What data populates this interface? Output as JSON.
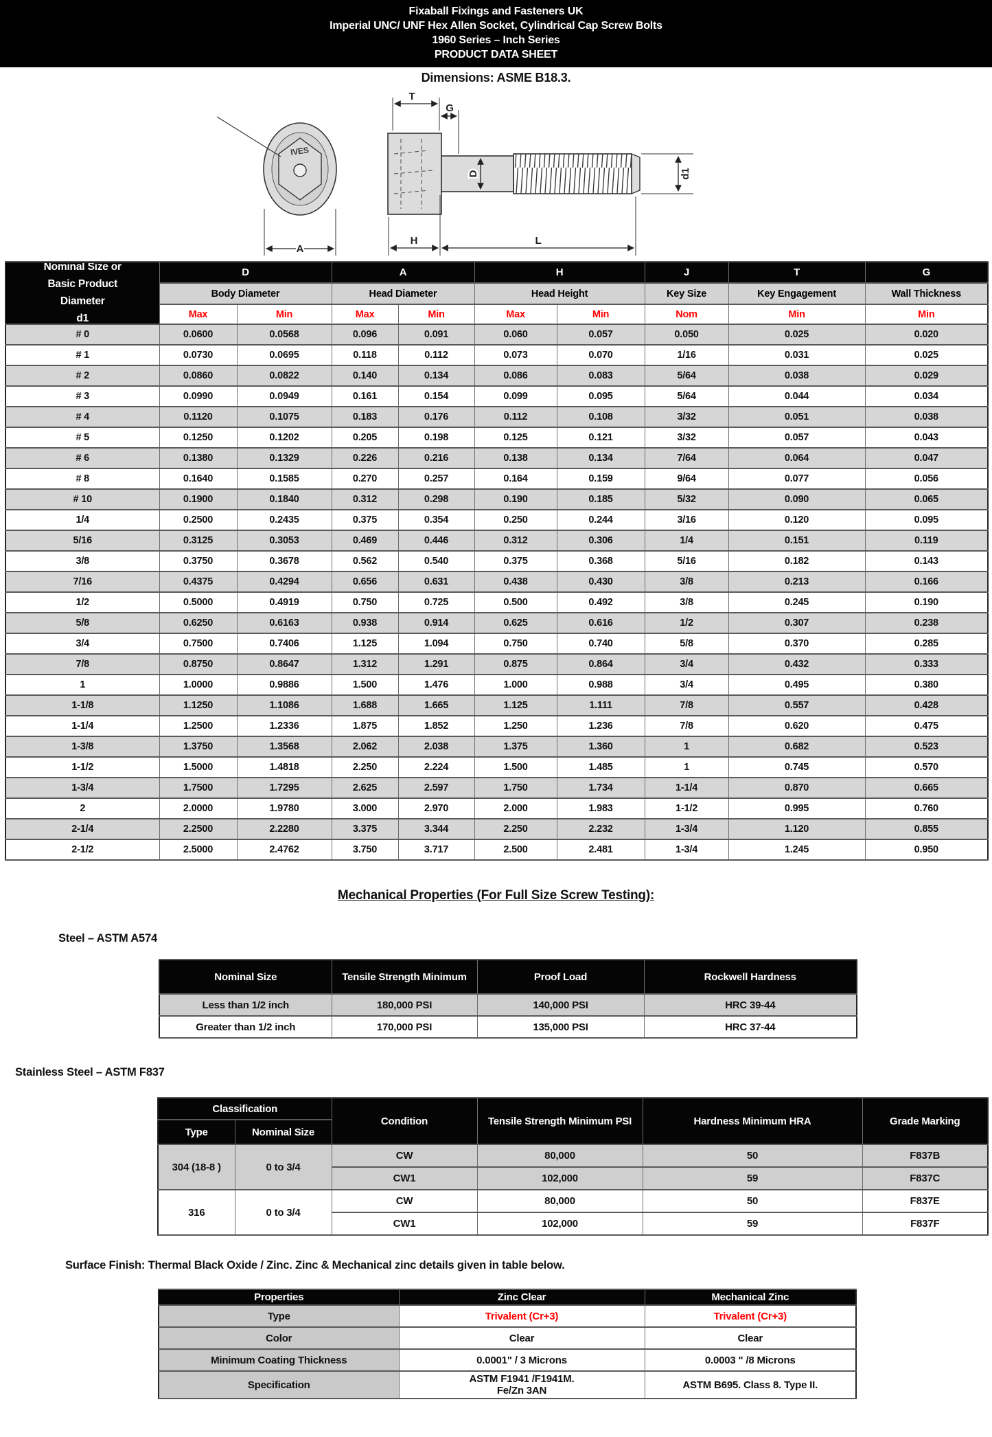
{
  "colors": {
    "accent_red": "#ff0000",
    "band_black": "#000000",
    "row_gray": "#d6d6d6",
    "label_gray": "#d3d3d3"
  },
  "header": {
    "line1": "Fixaball Fixings and Fasteners UK",
    "line2": "Imperial UNC/ UNF Hex Allen Socket, Cylindrical Cap Screw Bolts",
    "line3": "1960 Series – Inch Series",
    "line4": "PRODUCT DATA SHEET"
  },
  "subtitle": "Dimensions: ASME B18.3.",
  "drawing": {
    "labels": {
      "T": "T",
      "G": "G",
      "D": "D",
      "d1": "d1",
      "H": "H",
      "L": "L",
      "A": "A",
      "brand": "IVES"
    }
  },
  "dim_table": {
    "col1_lines": [
      "Nominal Size or",
      "Basic Product",
      "Diameter",
      "d1"
    ],
    "groups": [
      {
        "letter": "D",
        "name": "Body Diameter",
        "subs": [
          "Max",
          "Min"
        ]
      },
      {
        "letter": "A",
        "name": "Head Diameter",
        "subs": [
          "Max",
          "Min"
        ]
      },
      {
        "letter": "H",
        "name": "Head Height",
        "subs": [
          "Max",
          "Min"
        ]
      },
      {
        "letter": "J",
        "name": "Key Size",
        "subs": [
          "Nom"
        ]
      },
      {
        "letter": "T",
        "name": "Key Engagement",
        "subs": [
          "Min"
        ]
      },
      {
        "letter": "G",
        "name": "Wall Thickness",
        "subs": [
          "Min"
        ]
      }
    ],
    "rows": [
      [
        "# 0",
        "0.0600",
        "0.0568",
        "0.096",
        "0.091",
        "0.060",
        "0.057",
        "0.050",
        "0.025",
        "0.020"
      ],
      [
        "# 1",
        "0.0730",
        "0.0695",
        "0.118",
        "0.112",
        "0.073",
        "0.070",
        "1/16",
        "0.031",
        "0.025"
      ],
      [
        "# 2",
        "0.0860",
        "0.0822",
        "0.140",
        "0.134",
        "0.086",
        "0.083",
        "5/64",
        "0.038",
        "0.029"
      ],
      [
        "# 3",
        "0.0990",
        "0.0949",
        "0.161",
        "0.154",
        "0.099",
        "0.095",
        "5/64",
        "0.044",
        "0.034"
      ],
      [
        "# 4",
        "0.1120",
        "0.1075",
        "0.183",
        "0.176",
        "0.112",
        "0.108",
        "3/32",
        "0.051",
        "0.038"
      ],
      [
        "# 5",
        "0.1250",
        "0.1202",
        "0.205",
        "0.198",
        "0.125",
        "0.121",
        "3/32",
        "0.057",
        "0.043"
      ],
      [
        "# 6",
        "0.1380",
        "0.1329",
        "0.226",
        "0.216",
        "0.138",
        "0.134",
        "7/64",
        "0.064",
        "0.047"
      ],
      [
        "# 8",
        "0.1640",
        "0.1585",
        "0.270",
        "0.257",
        "0.164",
        "0.159",
        "9/64",
        "0.077",
        "0.056"
      ],
      [
        "# 10",
        "0.1900",
        "0.1840",
        "0.312",
        "0.298",
        "0.190",
        "0.185",
        "5/32",
        "0.090",
        "0.065"
      ],
      [
        "1/4",
        "0.2500",
        "0.2435",
        "0.375",
        "0.354",
        "0.250",
        "0.244",
        "3/16",
        "0.120",
        "0.095"
      ],
      [
        "5/16",
        "0.3125",
        "0.3053",
        "0.469",
        "0.446",
        "0.312",
        "0.306",
        "1/4",
        "0.151",
        "0.119"
      ],
      [
        "3/8",
        "0.3750",
        "0.3678",
        "0.562",
        "0.540",
        "0.375",
        "0.368",
        "5/16",
        "0.182",
        "0.143"
      ],
      [
        "7/16",
        "0.4375",
        "0.4294",
        "0.656",
        "0.631",
        "0.438",
        "0.430",
        "3/8",
        "0.213",
        "0.166"
      ],
      [
        "1/2",
        "0.5000",
        "0.4919",
        "0.750",
        "0.725",
        "0.500",
        "0.492",
        "3/8",
        "0.245",
        "0.190"
      ],
      [
        "5/8",
        "0.6250",
        "0.6163",
        "0.938",
        "0.914",
        "0.625",
        "0.616",
        "1/2",
        "0.307",
        "0.238"
      ],
      [
        "3/4",
        "0.7500",
        "0.7406",
        "1.125",
        "1.094",
        "0.750",
        "0.740",
        "5/8",
        "0.370",
        "0.285"
      ],
      [
        "7/8",
        "0.8750",
        "0.8647",
        "1.312",
        "1.291",
        "0.875",
        "0.864",
        "3/4",
        "0.432",
        "0.333"
      ],
      [
        "1",
        "1.0000",
        "0.9886",
        "1.500",
        "1.476",
        "1.000",
        "0.988",
        "3/4",
        "0.495",
        "0.380"
      ],
      [
        "1-1/8",
        "1.1250",
        "1.1086",
        "1.688",
        "1.665",
        "1.125",
        "1.111",
        "7/8",
        "0.557",
        "0.428"
      ],
      [
        "1-1/4",
        "1.2500",
        "1.2336",
        "1.875",
        "1.852",
        "1.250",
        "1.236",
        "7/8",
        "0.620",
        "0.475"
      ],
      [
        "1-3/8",
        "1.3750",
        "1.3568",
        "2.062",
        "2.038",
        "1.375",
        "1.360",
        "1",
        "0.682",
        "0.523"
      ],
      [
        "1-1/2",
        "1.5000",
        "1.4818",
        "2.250",
        "2.224",
        "1.500",
        "1.485",
        "1",
        "0.745",
        "0.570"
      ],
      [
        "1-3/4",
        "1.7500",
        "1.7295",
        "2.625",
        "2.597",
        "1.750",
        "1.734",
        "1-1/4",
        "0.870",
        "0.665"
      ],
      [
        "2",
        "2.0000",
        "1.9780",
        "3.000",
        "2.970",
        "2.000",
        "1.983",
        "1-1/2",
        "0.995",
        "0.760"
      ],
      [
        "2-1/4",
        "2.2500",
        "2.2280",
        "3.375",
        "3.344",
        "2.250",
        "2.232",
        "1-3/4",
        "1.120",
        "0.855"
      ],
      [
        "2-1/2",
        "2.5000",
        "2.4762",
        "3.750",
        "3.717",
        "2.500",
        "2.481",
        "1-3/4",
        "1.245",
        "0.950"
      ]
    ]
  },
  "mech": {
    "title": "Mechanical Properties (For Full Size Screw Testing):",
    "steel": {
      "heading": "Steel – ASTM A574",
      "headers": [
        "Nominal Size",
        "Tensile Strength Minimum",
        "Proof Load",
        "Rockwell Hardness"
      ],
      "rows": [
        [
          "Less than 1/2 inch",
          "180,000 PSI",
          "140,000 PSI",
          "HRC 39-44"
        ],
        [
          "Greater than 1/2 inch",
          "170,000 PSI",
          "135,000 PSI",
          "HRC 37-44"
        ]
      ]
    },
    "stainless": {
      "heading": "Stainless Steel – ASTM F837",
      "headers": {
        "classification": "Classification",
        "type": "Type",
        "nominal_size": "Nominal Size",
        "condition": "Condition",
        "tensile": "Tensile Strength Minimum PSI",
        "hardness": "Hardness Minimum HRA",
        "grade": "Grade Marking"
      },
      "rows": [
        {
          "type": "304 (18-8 )",
          "nominal": "0 to 3/4",
          "condition": "CW",
          "tensile": "80,000",
          "hardness": "50",
          "grade": "F837B"
        },
        {
          "condition": "CW1",
          "tensile": "102,000",
          "hardness": "59",
          "grade": "F837C"
        },
        {
          "type": "316",
          "nominal": "0 to 3/4",
          "condition": "CW",
          "tensile": "80,000",
          "hardness": "50",
          "grade": "F837E"
        },
        {
          "condition": "CW1",
          "tensile": "102,000",
          "hardness": "59",
          "grade": "F837F"
        }
      ]
    }
  },
  "surface": {
    "note": "Surface Finish: Thermal Black Oxide / Zinc. Zinc & Mechanical zinc details given in table below.",
    "headers": [
      "Properties",
      "Zinc Clear",
      "Mechanical Zinc"
    ],
    "rows": [
      {
        "prop": "Type",
        "zinc": "Trivalent (Cr+3)",
        "mech": "Trivalent (Cr+3)",
        "red": true
      },
      {
        "prop": "Color",
        "zinc": "Clear",
        "mech": "Clear"
      },
      {
        "prop": "Minimum Coating Thickness",
        "zinc": "0.0001\" / 3 Microns",
        "mech": "0.0003 \" /8 Microns"
      },
      {
        "prop": "Specification",
        "zinc": "ASTM F1941 /F1941M.\nFe/Zn 3AN",
        "mech": "ASTM B695. Class 8. Type II."
      }
    ]
  }
}
